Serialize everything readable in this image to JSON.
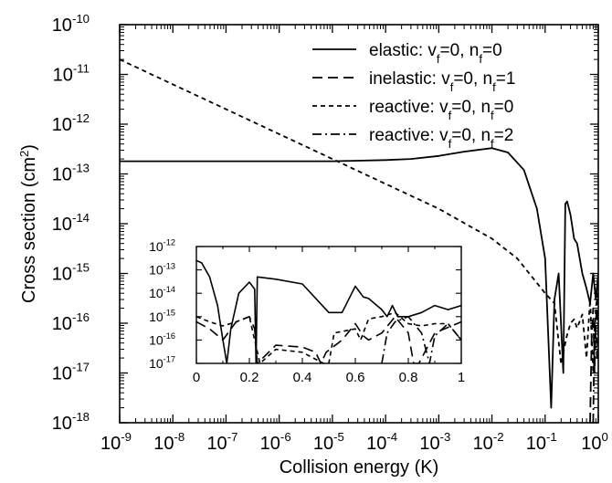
{
  "chart_data": [
    {
      "type": "line",
      "xlabel": "Collision energy (K)",
      "ylabel": "Cross section (cm^2)",
      "x_scale": "log",
      "y_scale": "log",
      "xlim": [
        1e-09,
        1
      ],
      "ylim": [
        1e-18,
        1e-10
      ],
      "x_ticks": [
        -9,
        -8,
        -7,
        -6,
        -5,
        -4,
        -3,
        -2,
        -1,
        0
      ],
      "y_ticks": [
        -18,
        -17,
        -16,
        -15,
        -14,
        -13,
        -12,
        -11,
        -10
      ],
      "legend_position": "top-right",
      "series": [
        {
          "name": "elastic: v_f=0, n_f=0",
          "style": "solid",
          "x": [
            1e-09,
            1e-08,
            1e-07,
            1e-06,
            1e-05,
            0.0001,
            0.0003,
            0.001,
            0.003,
            0.01,
            0.02,
            0.04,
            0.07,
            0.1,
            0.13,
            0.15,
            0.18,
            0.22,
            0.24,
            0.26,
            0.3,
            0.35,
            0.4,
            0.5,
            0.6,
            0.7,
            0.8,
            0.9,
            1.0
          ],
          "y": [
            1.8e-13,
            1.8e-13,
            1.8e-13,
            1.8e-13,
            1.8e-13,
            1.9e-13,
            2e-13,
            2.3e-13,
            2.8e-13,
            3.3e-13,
            2.7e-13,
            1.2e-13,
            2e-14,
            2e-15,
            2e-18,
            3e-16,
            1e-15,
            1e-17,
            2.5e-14,
            2.8e-14,
            1.5e-14,
            5e-15,
            4e-15,
            1e-15,
            5e-16,
            2.5e-16,
            1e-15,
            3e-16,
            1e-15
          ]
        },
        {
          "name": "inelastic: v_f=0, n_f=1",
          "style": "long-dash",
          "x": [
            0.7,
            0.75,
            0.8,
            0.85,
            0.9,
            0.95,
            1.0
          ],
          "y": [
            1e-18,
            5e-17,
            2e-16,
            1e-17,
            1e-16,
            3e-16,
            5e-17
          ]
        },
        {
          "name": "reactive: v_f=0, n_f=0",
          "style": "short-dash",
          "x": [
            1e-09,
            1e-08,
            1e-07,
            1e-06,
            1e-05,
            0.0001,
            0.001,
            0.01,
            0.03,
            0.1,
            0.15,
            0.2,
            0.25,
            0.3,
            0.35,
            0.4,
            0.5,
            0.6,
            0.7,
            0.8,
            0.9,
            1.0
          ],
          "y": [
            2e-11,
            6.3e-12,
            2e-12,
            6.3e-13,
            2e-13,
            6.3e-14,
            2e-14,
            5e-15,
            2e-15,
            4e-16,
            2.5e-16,
            1.5e-17,
            5e-17,
            1e-16,
            1.2e-16,
            8e-17,
            1.5e-16,
            2e-17,
            3e-16,
            1e-17,
            2e-16,
            5e-16
          ]
        },
        {
          "name": "reactive: v_f=0, n_f=2",
          "style": "dash-dot",
          "x": [
            0.8,
            0.85,
            0.9,
            0.95,
            1.0
          ],
          "y": [
            1e-18,
            1e-16,
            5e-17,
            2e-17,
            1e-16
          ]
        }
      ],
      "legend_entries": [
        {
          "label": "elastic: v",
          "sub1": "f",
          "mid": "=0, n",
          "sub2": "f",
          "end": "=0"
        },
        {
          "label": "inelastic: v",
          "sub1": "f",
          "mid": "=0, n",
          "sub2": "f",
          "end": "=1"
        },
        {
          "label": "reactive: v",
          "sub1": "f",
          "mid": "=0, n",
          "sub2": "f",
          "end": "=0"
        },
        {
          "label": "reactive: v",
          "sub1": "f",
          "mid": "=0, n",
          "sub2": "f",
          "end": "=2"
        }
      ]
    },
    {
      "type": "line",
      "placement": "inset",
      "x_scale": "linear",
      "y_scale": "log",
      "xlim": [
        0,
        1
      ],
      "ylim": [
        1e-17,
        1e-12
      ],
      "x_ticks": [
        0,
        0.2,
        0.4,
        0.6,
        0.8,
        1
      ],
      "x_tick_labels": [
        "0",
        "0.2",
        "0.4",
        "0.6",
        "0.8",
        "1"
      ],
      "y_ticks": [
        -17,
        -16,
        -15,
        -14,
        -13,
        -12
      ],
      "series": [
        {
          "name": "elastic: v_f=0, n_f=0",
          "style": "solid",
          "x": [
            0.0,
            0.02,
            0.05,
            0.08,
            0.1,
            0.115,
            0.13,
            0.16,
            0.2,
            0.22,
            0.225,
            0.23,
            0.3,
            0.4,
            0.5,
            0.55,
            0.6,
            0.63,
            0.65,
            0.7,
            0.72,
            0.74,
            0.76,
            0.8,
            0.85,
            0.9,
            0.95,
            1.0
          ],
          "y": [
            2.5e-13,
            2e-13,
            5e-14,
            3e-15,
            1e-16,
            1e-17,
            3e-16,
            1e-14,
            3e-14,
            1.5e-14,
            1e-17,
            5e-14,
            4e-14,
            2.5e-14,
            1.5e-15,
            1.5e-15,
            2e-14,
            7e-15,
            6e-15,
            2e-15,
            1e-15,
            3e-15,
            1e-15,
            1e-15,
            1.5e-15,
            3e-15,
            2e-15,
            3e-15
          ]
        },
        {
          "name": "inelastic: v_f=0, n_f=1",
          "style": "long-dash",
          "x": [
            0.0,
            0.05,
            0.1,
            0.15,
            0.2,
            0.22,
            0.23,
            0.3,
            0.4,
            0.45,
            0.47,
            0.49,
            0.55,
            0.6,
            0.63,
            0.65,
            0.7,
            0.75,
            0.8,
            0.82,
            0.84,
            0.9,
            1.0
          ],
          "y": [
            6e-16,
            3e-16,
            1e-16,
            6e-16,
            1e-15,
            3e-16,
            1e-17,
            6e-17,
            5e-17,
            3e-17,
            1e-17,
            3e-17,
            1e-16,
            5e-16,
            1.5e-16,
            1e-16,
            2e-16,
            1e-15,
            2e-16,
            1e-17,
            1e-17,
            2e-16,
            6e-16
          ]
        },
        {
          "name": "reactive: v_f=0, n_f=0",
          "style": "short-dash",
          "x": [
            0.0,
            0.05,
            0.1,
            0.15,
            0.2,
            0.22,
            0.24,
            0.3,
            0.4,
            0.48,
            0.5,
            0.52,
            0.6,
            0.62,
            0.65,
            0.7,
            0.75,
            0.8,
            0.85,
            0.9,
            0.95,
            1.0
          ],
          "y": [
            1e-15,
            6e-16,
            4e-16,
            6e-16,
            1e-15,
            1e-16,
            1e-17,
            4e-17,
            3e-17,
            1e-17,
            1e-17,
            2e-16,
            3e-16,
            1e-16,
            8e-16,
            1e-15,
            1.5e-15,
            5e-16,
            4e-16,
            5e-16,
            5e-16,
            1e-16
          ]
        },
        {
          "name": "reactive: v_f=0, n_f=2",
          "style": "dash-dot",
          "x": [
            0.7,
            0.72,
            0.75,
            0.8,
            0.85,
            0.88,
            0.9,
            0.95,
            1.0
          ],
          "y": [
            1e-17,
            2e-16,
            6e-16,
            1e-15,
            2e-16,
            1e-17,
            1.5e-16,
            5e-16,
            1e-16
          ]
        }
      ]
    }
  ]
}
